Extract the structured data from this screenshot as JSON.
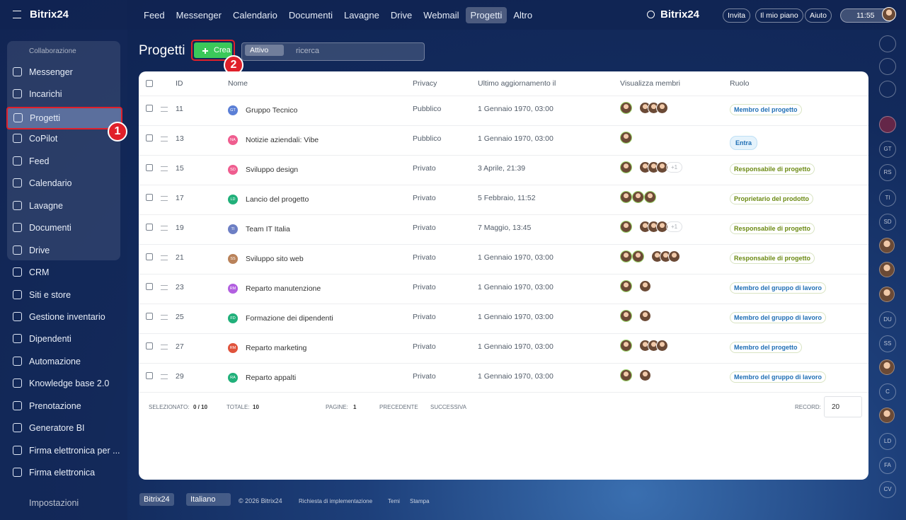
{
  "header": {
    "logo": "Bitrix24",
    "nav": [
      "Feed",
      "Messenger",
      "Calendario",
      "Documenti",
      "Lavagne",
      "Drive",
      "Webmail",
      "Progetti",
      "Altro"
    ],
    "search_logo": "Bitrix24",
    "buttons": [
      "Invita",
      "Il mio piano",
      "Aiuto"
    ],
    "time": "11:55"
  },
  "sidebar": {
    "group": "Collaborazione",
    "items": [
      "Messenger",
      "Incarichi",
      "Progetti",
      "CoPilot",
      "Feed",
      "Calendario",
      "Lavagne",
      "Documenti",
      "Drive",
      "CRM",
      "Siti e store",
      "Gestione inventario",
      "Dipendenti",
      "Automazione",
      "Knowledge base 2.0",
      "Prenotazione",
      "Generatore BI",
      "Firma elettronica per ...",
      "Firma elettronica"
    ],
    "settings": "Impostazioni"
  },
  "toolbar": {
    "title": "Progetti",
    "create": "Crea",
    "filter": "Attivo",
    "search_placeholder": "ricerca"
  },
  "callouts": [
    "1",
    "2"
  ],
  "table": {
    "columns": [
      "ID",
      "Nome",
      "Privacy",
      "Ultimo aggiornamento il",
      "Visualizza membri",
      "Ruolo"
    ],
    "rows": [
      {
        "id": "11",
        "initials": "GT",
        "color": "#5b7fd6",
        "name": "Gruppo Tecnico",
        "privacy": "Pubblico",
        "updated": "1 Gennaio 1970, 03:00",
        "more": null,
        "role": "Membro del progetto",
        "role_color": "#1f6fb5"
      },
      {
        "id": "13",
        "initials": "NA",
        "color": "#ef5d8f",
        "name": "Notizie aziendali: Vibe",
        "privacy": "Pubblico",
        "updated": "1 Gennaio 1970, 03:00",
        "more": null,
        "role": "Entra",
        "role_color": "#1f6fb5"
      },
      {
        "id": "15",
        "initials": "SD",
        "color": "#ef5d8f",
        "name": "Sviluppo design",
        "privacy": "Privato",
        "updated": "3 Aprile, 21:39",
        "more": "+1",
        "role": "Responsabile di progetto",
        "role_color": "#6b8a12"
      },
      {
        "id": "17",
        "initials": "LD",
        "color": "#21b07a",
        "name": "Lancio del progetto",
        "privacy": "Privato",
        "updated": "5 Febbraio, 11:52",
        "more": null,
        "role": "Proprietario del prodotto",
        "role_color": "#6b8a12"
      },
      {
        "id": "19",
        "initials": "TI",
        "color": "#6d7fc4",
        "name": "Team IT Italia",
        "privacy": "Privato",
        "updated": "7 Maggio, 13:45",
        "more": "+1",
        "role": "Responsabile di progetto",
        "role_color": "#6b8a12"
      },
      {
        "id": "21",
        "initials": "SS",
        "color": "#b9825a",
        "name": "Sviluppo sito web",
        "privacy": "Privato",
        "updated": "1 Gennaio 1970, 03:00",
        "more": null,
        "role": "Responsabile di progetto",
        "role_color": "#6b8a12"
      },
      {
        "id": "23",
        "initials": "RM",
        "color": "#b25fe0",
        "name": "Reparto manutenzione",
        "privacy": "Privato",
        "updated": "1 Gennaio 1970, 03:00",
        "more": null,
        "role": "Membro del gruppo di lavoro",
        "role_color": "#1f6fb5"
      },
      {
        "id": "25",
        "initials": "FD",
        "color": "#21b07a",
        "name": "Formazione dei dipendenti",
        "privacy": "Privato",
        "updated": "1 Gennaio 1970, 03:00",
        "more": null,
        "role": "Membro del gruppo di lavoro",
        "role_color": "#1f6fb5"
      },
      {
        "id": "27",
        "initials": "RM",
        "color": "#e0533c",
        "name": "Reparto marketing",
        "privacy": "Privato",
        "updated": "1 Gennaio 1970, 03:00",
        "more": null,
        "role": "Membro del progetto",
        "role_color": "#1f6fb5"
      },
      {
        "id": "29",
        "initials": "RA",
        "color": "#21b07a",
        "name": "Reparto appalti",
        "privacy": "Privato",
        "updated": "1 Gennaio 1970, 03:00",
        "more": null,
        "role": "Membro del gruppo di lavoro",
        "role_color": "#1f6fb5"
      }
    ]
  },
  "table_footer": {
    "selected_label": "SELEZIONATO:",
    "selected": "0 / 10",
    "total_label": "TOTALE:",
    "total": "10",
    "pages_label": "PAGINE:",
    "page": "1",
    "prev": "PRECEDENTE",
    "next": "SUCCESSIVA",
    "records_label": "RECORD:",
    "records": "20"
  },
  "bottom": {
    "logo": "Bitrix24",
    "language": "Italiano",
    "copyright": "© 2026 Bitrix24",
    "links": [
      "Richiesta di implementazione",
      "Temi",
      "Stampa"
    ]
  },
  "right_rail": [
    "GT",
    "RS",
    "TI",
    "SD",
    "DU",
    "SS",
    "C",
    "LD",
    "FA",
    "CV"
  ]
}
